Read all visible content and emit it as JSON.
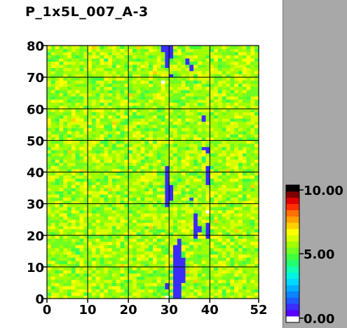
{
  "chart_data": {
    "type": "heatmap",
    "title": "P_1x5L_007_A-3",
    "xlabel": "",
    "ylabel": "",
    "xlim": [
      0,
      52
    ],
    "ylim": [
      0,
      80
    ],
    "x_ticks": [
      "0",
      "10",
      "20",
      "30",
      "40",
      "52"
    ],
    "y_ticks": [
      "0",
      "10",
      "20",
      "30",
      "40",
      "50",
      "60",
      "70",
      "80"
    ],
    "x_tick_values": [
      0,
      10,
      20,
      30,
      40,
      52
    ],
    "y_tick_values": [
      0,
      10,
      20,
      30,
      40,
      50,
      60,
      70,
      80
    ],
    "grid": true,
    "background_value": 5.5,
    "background_noise": 1.3,
    "low_value_segments": [
      {
        "x": 31,
        "y_from": 0,
        "y_to": 17,
        "value": 0.5
      },
      {
        "x": 32,
        "y_from": 0,
        "y_to": 19,
        "value": 0.5
      },
      {
        "x": 33,
        "y_from": 5,
        "y_to": 13,
        "value": 0.6
      },
      {
        "x": 29,
        "y_from": 3,
        "y_to": 5,
        "value": 0.6
      },
      {
        "x": 29,
        "y_from": 29,
        "y_to": 42,
        "value": 0.5
      },
      {
        "x": 30,
        "y_from": 31,
        "y_to": 36,
        "value": 0.6
      },
      {
        "x": 36,
        "y_from": 19,
        "y_to": 27,
        "value": 0.5
      },
      {
        "x": 37,
        "y_from": 21,
        "y_to": 23,
        "value": 0.7
      },
      {
        "x": 39,
        "y_from": 19,
        "y_to": 24,
        "value": 0.5
      },
      {
        "x": 39,
        "y_from": 36,
        "y_to": 42,
        "value": 0.5
      },
      {
        "x": 39,
        "y_from": 46,
        "y_to": 48,
        "value": 0.6
      },
      {
        "x": 38,
        "y_from": 47,
        "y_to": 48,
        "value": 0.6
      },
      {
        "x": 35,
        "y_from": 31,
        "y_to": 32,
        "value": 0.8
      },
      {
        "x": 38,
        "y_from": 56,
        "y_to": 58,
        "value": 0.7
      },
      {
        "x": 29,
        "y_from": 73,
        "y_to": 80,
        "value": 0.5
      },
      {
        "x": 28,
        "y_from": 78,
        "y_to": 80,
        "value": 0.5
      },
      {
        "x": 30,
        "y_from": 76,
        "y_to": 80,
        "value": 0.6
      },
      {
        "x": 34,
        "y_from": 74,
        "y_to": 76,
        "value": 0.6
      },
      {
        "x": 35,
        "y_from": 72,
        "y_to": 74,
        "value": 0.6
      },
      {
        "x": 30,
        "y_from": 70,
        "y_to": 71,
        "value": 0.7
      }
    ],
    "white_cells": [
      {
        "x": 28,
        "y": 68
      },
      {
        "x": 39,
        "y": 27
      },
      {
        "x": 29,
        "y": 0
      }
    ],
    "colorbar": {
      "min": 0.0,
      "max": 10.0,
      "labels": [
        "10.00",
        "5.00",
        "0.00"
      ],
      "label_values": [
        10,
        5,
        0
      ],
      "colors": [
        "#ffffff",
        "#5a00ff",
        "#3a2cff",
        "#1e58ff",
        "#0a84ff",
        "#00b0ff",
        "#00d8ff",
        "#00f4e0",
        "#10ffb0",
        "#20ff70",
        "#40ff40",
        "#70ff20",
        "#a0ff00",
        "#d8ff00",
        "#ffff00",
        "#ffd000",
        "#ffa000",
        "#ff7000",
        "#ff3000",
        "#e00000",
        "#800000",
        "#000000"
      ]
    }
  }
}
